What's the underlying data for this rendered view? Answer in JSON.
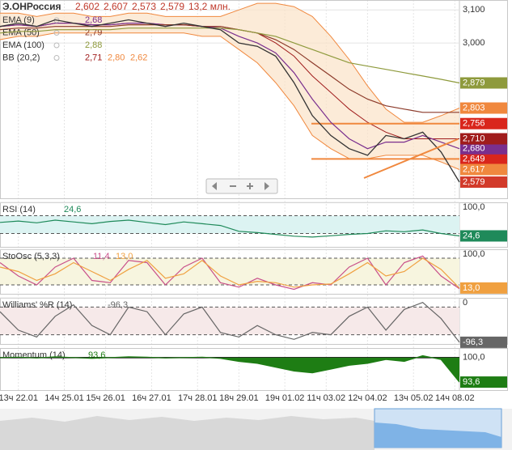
{
  "chart_data": [
    {
      "type": "line",
      "title": "Э.ОНРоссия",
      "quote": [
        "2,602",
        "2,607",
        "2,573",
        "2,579",
        "13,2 млн."
      ],
      "x": [
        0,
        4,
        8,
        12,
        16,
        20,
        24,
        28,
        32,
        36,
        40,
        44,
        48,
        52,
        56,
        60,
        64,
        68,
        72,
        76,
        80,
        84,
        88,
        92,
        96,
        100
      ],
      "xlim": [
        0,
        100
      ],
      "ylim": [
        2.53,
        3.13
      ],
      "yticks": [
        {
          "value": 3.1,
          "label": "3,100"
        },
        {
          "value": 3.0,
          "label": "3,000"
        }
      ],
      "close": {
        "color": "#d23a2a",
        "value_label": "2,579",
        "values": [
          3.05,
          3.06,
          3.05,
          3.07,
          3.06,
          3.05,
          3.06,
          3.07,
          3.06,
          3.05,
          3.06,
          3.05,
          3.04,
          3.0,
          2.99,
          2.96,
          2.88,
          2.78,
          2.72,
          2.68,
          2.66,
          2.72,
          2.71,
          2.73,
          2.67,
          2.579
        ]
      },
      "series": [
        {
          "name": "EMA (9)",
          "legend_value": "2,68",
          "color": "#7a2f8e",
          "value_label": "2,680",
          "values": [
            3.05,
            3.055,
            3.05,
            3.06,
            3.06,
            3.055,
            3.055,
            3.06,
            3.06,
            3.055,
            3.055,
            3.05,
            3.045,
            3.02,
            3.0,
            2.97,
            2.91,
            2.83,
            2.76,
            2.71,
            2.68,
            2.7,
            2.7,
            2.72,
            2.7,
            2.68
          ]
        },
        {
          "name": "EMA (50)",
          "legend_value": "2,79",
          "color": "#8c3a2a",
          "values": [
            3.04,
            3.045,
            3.045,
            3.05,
            3.05,
            3.05,
            3.05,
            3.055,
            3.055,
            3.055,
            3.055,
            3.05,
            3.05,
            3.04,
            3.03,
            3.01,
            2.98,
            2.94,
            2.9,
            2.86,
            2.83,
            2.81,
            2.8,
            2.79,
            2.79,
            2.79
          ]
        },
        {
          "name": "EMA (100)",
          "legend_value": "2,88",
          "color": "#8e9a3c",
          "value_label": "2,879",
          "values": [
            3.03,
            3.035,
            3.035,
            3.04,
            3.04,
            3.04,
            3.04,
            3.045,
            3.045,
            3.045,
            3.045,
            3.045,
            3.045,
            3.04,
            3.03,
            3.02,
            3.0,
            2.98,
            2.96,
            2.94,
            2.93,
            2.92,
            2.91,
            2.9,
            2.89,
            2.879
          ]
        }
      ],
      "band": {
        "name": "BB (20,2)",
        "legend_values": [
          "2,71",
          "2,80",
          "2,62"
        ],
        "color": "#f0883e",
        "middle_color": "#a01c1c",
        "middle_value_label": "2,710",
        "upper_value_label": "2,803",
        "lower_value_label": "2,617",
        "middle": [
          3.05,
          3.055,
          3.05,
          3.06,
          3.06,
          3.055,
          3.055,
          3.06,
          3.06,
          3.055,
          3.055,
          3.05,
          3.05,
          3.04,
          3.03,
          3.0,
          2.96,
          2.9,
          2.85,
          2.8,
          2.76,
          2.73,
          2.71,
          2.71,
          2.71,
          2.71
        ],
        "upper": [
          3.09,
          3.09,
          3.08,
          3.09,
          3.09,
          3.08,
          3.08,
          3.09,
          3.09,
          3.08,
          3.08,
          3.08,
          3.08,
          3.1,
          3.12,
          3.12,
          3.11,
          3.08,
          3.02,
          2.95,
          2.87,
          2.8,
          2.76,
          2.76,
          2.78,
          2.803
        ],
        "lower": [
          3.01,
          3.02,
          3.02,
          3.03,
          3.03,
          3.03,
          3.03,
          3.03,
          3.03,
          3.03,
          3.03,
          3.02,
          3.02,
          2.98,
          2.94,
          2.88,
          2.81,
          2.72,
          2.68,
          2.65,
          2.65,
          2.66,
          2.66,
          2.66,
          2.64,
          2.617
        ]
      },
      "hlines": [
        {
          "value": 2.756,
          "label": "2,756"
        },
        {
          "value": 2.649,
          "label": "2,649"
        }
      ],
      "hline_color": "#f0883e",
      "hline_box_color": "#d9261c"
    },
    {
      "type": "line",
      "title": "RSI (14)",
      "x": [
        0,
        4,
        8,
        12,
        16,
        20,
        24,
        28,
        32,
        36,
        40,
        44,
        48,
        52,
        56,
        60,
        64,
        68,
        72,
        76,
        80,
        84,
        88,
        92,
        96,
        100
      ],
      "xlim": [
        0,
        100
      ],
      "ylim": [
        0,
        100
      ],
      "yticks": [
        {
          "value": 100,
          "label": "100,0"
        }
      ],
      "levels": [
        30,
        70
      ],
      "zone_color": "#dcf3f2",
      "series": [
        {
          "legend_value": "24,6",
          "value_label": "24,6",
          "color": "#1f8a5a",
          "values": [
            55,
            58,
            54,
            60,
            56,
            52,
            57,
            60,
            55,
            50,
            56,
            52,
            48,
            35,
            32,
            28,
            24,
            22,
            25,
            28,
            30,
            36,
            34,
            38,
            30,
            24.6
          ]
        }
      ]
    },
    {
      "type": "line",
      "title": "StoOsc (5,3,3)",
      "x": [
        0,
        4,
        8,
        12,
        16,
        20,
        24,
        28,
        32,
        36,
        40,
        44,
        48,
        52,
        56,
        60,
        64,
        68,
        72,
        76,
        80,
        84,
        88,
        92,
        96,
        100
      ],
      "xlim": [
        0,
        100
      ],
      "ylim": [
        0,
        100
      ],
      "yticks": [
        {
          "value": 100,
          "label": "100,0"
        }
      ],
      "levels": [
        20,
        80
      ],
      "zone_color": "#f7f5df",
      "series": [
        {
          "legend_value": "11,4",
          "color": "#c9508a",
          "values": [
            70,
            40,
            20,
            60,
            80,
            30,
            25,
            75,
            70,
            20,
            60,
            80,
            25,
            15,
            35,
            20,
            10,
            25,
            20,
            60,
            80,
            20,
            70,
            85,
            40,
            11.4
          ]
        },
        {
          "legend_value": "13,0",
          "value_label": "13,0",
          "color": "#f0a040",
          "values": [
            60,
            50,
            30,
            45,
            70,
            50,
            30,
            55,
            75,
            35,
            45,
            75,
            40,
            20,
            28,
            25,
            15,
            20,
            22,
            45,
            70,
            40,
            50,
            80,
            55,
            13.0
          ]
        }
      ]
    },
    {
      "type": "line",
      "title": "Williams' %R (14)",
      "x": [
        0,
        4,
        8,
        12,
        16,
        20,
        24,
        28,
        32,
        36,
        40,
        44,
        48,
        52,
        56,
        60,
        64,
        68,
        72,
        76,
        80,
        84,
        88,
        92,
        96,
        100
      ],
      "xlim": [
        0,
        100
      ],
      "ylim": [
        -100,
        0
      ],
      "yticks": [
        0
      ],
      "levels": [
        -80,
        -20
      ],
      "zone_color": "#f6e9e9",
      "series": [
        {
          "legend_value": "-96,3",
          "value_label": "-96,3",
          "color": "#666666",
          "values": [
            -30,
            -70,
            -85,
            -40,
            -15,
            -60,
            -80,
            -20,
            -30,
            -80,
            -35,
            -20,
            -75,
            -85,
            -60,
            -80,
            -90,
            -75,
            -80,
            -40,
            -20,
            -70,
            -25,
            -10,
            -45,
            -96.3
          ]
        }
      ]
    },
    {
      "type": "area",
      "title": "Momentum (14)",
      "x": [
        0,
        4,
        8,
        12,
        16,
        20,
        24,
        28,
        32,
        36,
        40,
        44,
        48,
        52,
        56,
        60,
        64,
        68,
        72,
        76,
        80,
        84,
        88,
        92,
        96,
        100
      ],
      "xlim": [
        0,
        100
      ],
      "ylim": [
        91.5,
        102.5
      ],
      "yticks": [
        {
          "value": 100,
          "label": "100,0"
        }
      ],
      "fill": "#1e7d14",
      "series": [
        {
          "legend_value": "93,6",
          "value_label": "93,6",
          "color": "#1e7d14",
          "values": [
            100,
            100.1,
            99.9,
            100.2,
            100,
            99.8,
            100,
            100.2,
            100.1,
            99.9,
            100,
            100.1,
            99.8,
            99,
            98.5,
            97.5,
            96.5,
            96,
            97,
            98,
            98.5,
            99.5,
            99,
            100.5,
            99.5,
            93.6
          ]
        }
      ],
      "xticks": [
        {
          "value": 4,
          "label": "13ч 22.01"
        },
        {
          "value": 14,
          "label": "14ч 25.01"
        },
        {
          "value": 23,
          "label": "15ч 26.01"
        },
        {
          "value": 33,
          "label": "16ч 27.01"
        },
        {
          "value": 43,
          "label": "17ч 28.01"
        },
        {
          "value": 52,
          "label": "18ч 29.01"
        },
        {
          "value": 62,
          "label": "19ч 01.02"
        },
        {
          "value": 71,
          "label": "11ч 03.02"
        },
        {
          "value": 80,
          "label": "12ч 04.02"
        },
        {
          "value": 90,
          "label": "13ч 05.02"
        },
        {
          "value": 99,
          "label": "14ч 08.02"
        }
      ]
    }
  ]
}
